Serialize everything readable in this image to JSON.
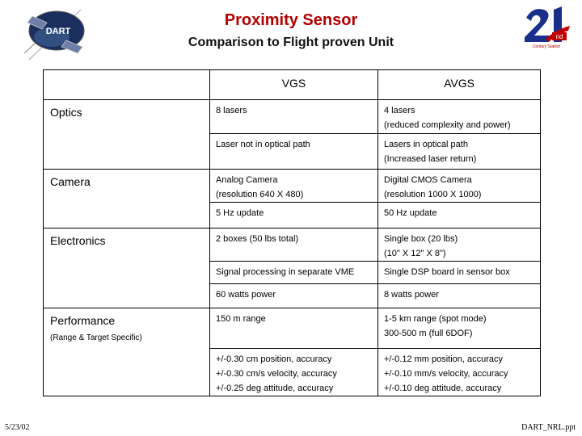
{
  "header": {
    "title": "Proximity Sensor",
    "subtitle": "Comparison to Flight proven Unit",
    "dart_logo_text": "DART",
    "logo_21_caption": "Century Station"
  },
  "table": {
    "columns": [
      "",
      "VGS",
      "AVGS"
    ],
    "categories": {
      "optics": "Optics",
      "camera": "Camera",
      "electronics": "Electronics",
      "performance": "Performance",
      "performance_sub": "(Range & Target Specific)"
    },
    "rows": {
      "optics_1": {
        "vgs": [
          "8 lasers"
        ],
        "avgs": [
          "4 lasers",
          "(reduced complexity and power)"
        ]
      },
      "optics_2": {
        "vgs": [
          "Laser not in optical path"
        ],
        "avgs": [
          "Lasers in optical path",
          "(Increased laser return)"
        ]
      },
      "camera_1": {
        "vgs": [
          "Analog Camera",
          "(resolution 640 X 480)"
        ],
        "avgs": [
          "Digital CMOS Camera",
          "(resolution 1000 X 1000)"
        ]
      },
      "camera_2": {
        "vgs": [
          "5 Hz update"
        ],
        "avgs": [
          "50 Hz update"
        ]
      },
      "electronics_1": {
        "vgs": [
          "2 boxes (50 lbs total)"
        ],
        "avgs": [
          "Single box  (20 lbs)",
          "(10\" X 12\" X 8\")"
        ]
      },
      "electronics_2": {
        "vgs": [
          "Signal processing in separate VME"
        ],
        "avgs": [
          "Single DSP board in sensor box"
        ]
      },
      "electronics_3": {
        "vgs": [
          "60 watts power"
        ],
        "avgs": [
          "8 watts power"
        ]
      },
      "performance_1": {
        "vgs": [
          "150 m range"
        ],
        "avgs": [
          "1-5 km range (spot mode)",
          "300-500 m (full 6DOF)"
        ]
      },
      "performance_2": {
        "vgs": [
          "+/-0.30 cm position, accuracy",
          "+/-0.30 cm/s velocity, accuracy",
          "+/-0.25 deg attitude, accuracy"
        ],
        "avgs": [
          "+/-0.12 mm position, accuracy",
          "+/-0.10 mm/s velocity, accuracy",
          "+/-0.10 deg attitude, accuracy"
        ]
      }
    }
  },
  "footer": {
    "date": "5/23/02",
    "file": "DART_NRL.ppt"
  },
  "colors": {
    "title": "#b30000",
    "logo_red": "#c00000",
    "logo_blue": "#1a2f8a"
  }
}
